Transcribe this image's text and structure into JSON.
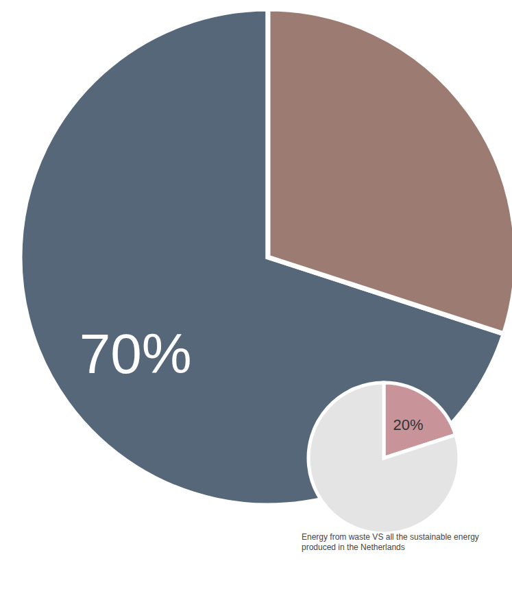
{
  "chart_data": [
    {
      "type": "pie",
      "values": [
        70,
        30
      ],
      "value_labels": [
        "70%",
        null
      ],
      "colors": [
        "#56677a",
        "#9b7b72"
      ]
    },
    {
      "type": "pie",
      "title": "Energy from waste VS all the sustainable energy produced in the Netherlands",
      "values": [
        20,
        80
      ],
      "value_labels": [
        "20%",
        null
      ],
      "colors": [
        "#c9939a",
        "#e4e4e4"
      ]
    }
  ]
}
